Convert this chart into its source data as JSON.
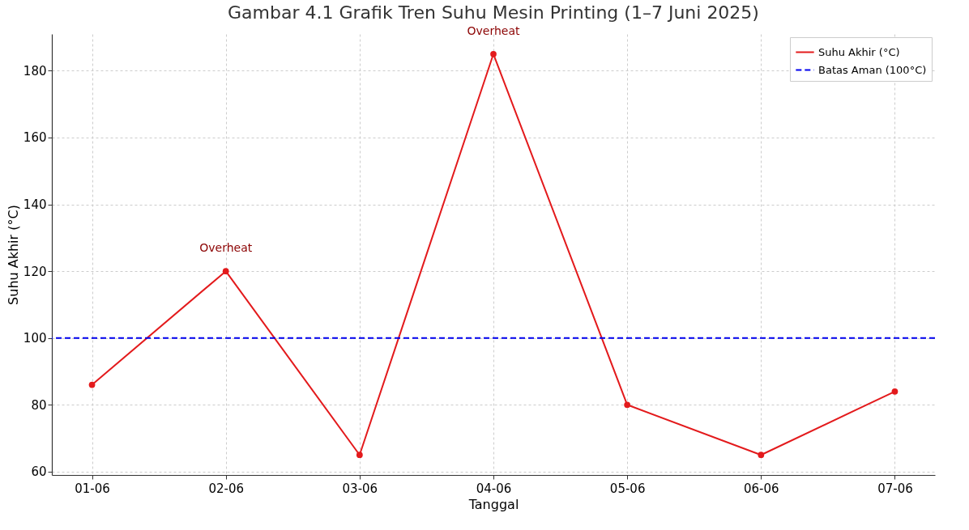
{
  "chart_data": {
    "type": "line",
    "title": "Gambar 4.1 Grafik Tren Suhu Mesin Printing (1–7 Juni 2025)",
    "xlabel": "Tanggal",
    "ylabel": "Suhu Akhir (°C)",
    "categories": [
      "01-06",
      "02-06",
      "03-06",
      "04-06",
      "05-06",
      "06-06",
      "07-06"
    ],
    "series": [
      {
        "name": "Suhu Akhir (°C)",
        "color": "#e31a1c",
        "values": [
          86,
          120,
          65,
          185,
          80,
          65,
          84
        ]
      }
    ],
    "ref_lines": [
      {
        "axis": "y",
        "value": 100,
        "label": "Batas Aman (100°C)",
        "color": "#0000ee",
        "line_style": "dashed"
      }
    ],
    "annotations": [
      {
        "text": "Overheat",
        "x": "02-06",
        "y": 120
      },
      {
        "text": "Overheat",
        "x": "04-06",
        "y": 185
      }
    ],
    "ylim": [
      59,
      191
    ],
    "yticks": [
      60,
      80,
      100,
      120,
      140,
      160,
      180
    ],
    "grid": true,
    "legend": "top right",
    "marker": "circle",
    "line_style": "solid"
  }
}
